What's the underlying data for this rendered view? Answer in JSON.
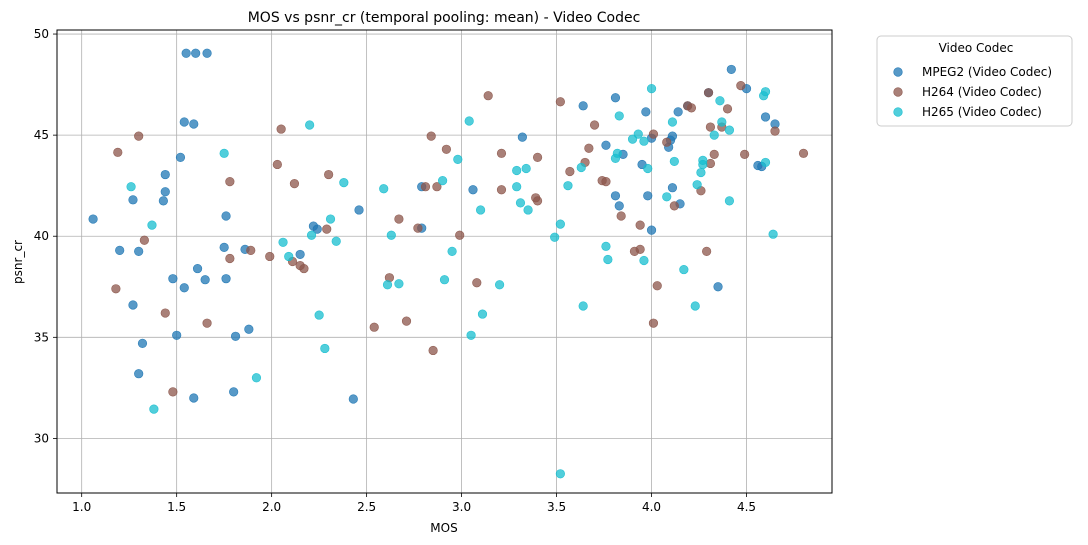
{
  "chart_data": {
    "type": "scatter",
    "title": "MOS vs psnr_cr (temporal pooling: mean) - Video Codec",
    "xlabel": "MOS",
    "ylabel": "psnr_cr",
    "xlim": [
      0.87,
      4.95
    ],
    "ylim": [
      27.3,
      50.2
    ],
    "xticks": [
      1.0,
      1.5,
      2.0,
      2.5,
      3.0,
      3.5,
      4.0,
      4.5
    ],
    "xtick_labels": [
      "1.0",
      "1.5",
      "2.0",
      "2.5",
      "3.0",
      "3.5",
      "4.0",
      "4.5"
    ],
    "yticks": [
      30,
      35,
      40,
      45,
      50
    ],
    "ytick_labels": [
      "30",
      "35",
      "40",
      "45",
      "50"
    ],
    "grid": true,
    "legend": {
      "title": "Video Codec",
      "placement": "outside-top-right"
    },
    "series": [
      {
        "name": "MPEG2 (Video Codec)",
        "color": "#1f77b4",
        "points": [
          [
            1.06,
            40.85
          ],
          [
            1.2,
            39.3
          ],
          [
            1.27,
            41.8
          ],
          [
            1.27,
            36.6
          ],
          [
            1.3,
            39.25
          ],
          [
            1.3,
            33.2
          ],
          [
            1.32,
            34.7
          ],
          [
            1.43,
            41.75
          ],
          [
            1.44,
            43.05
          ],
          [
            1.44,
            42.2
          ],
          [
            1.48,
            37.9
          ],
          [
            1.5,
            35.1
          ],
          [
            1.52,
            43.9
          ],
          [
            1.54,
            45.65
          ],
          [
            1.54,
            37.45
          ],
          [
            1.55,
            49.05
          ],
          [
            1.59,
            45.55
          ],
          [
            1.6,
            49.05
          ],
          [
            1.59,
            32.0
          ],
          [
            1.61,
            38.4
          ],
          [
            1.65,
            37.85
          ],
          [
            1.66,
            49.05
          ],
          [
            1.75,
            39.45
          ],
          [
            1.76,
            41.0
          ],
          [
            1.76,
            37.9
          ],
          [
            1.8,
            32.3
          ],
          [
            1.81,
            35.05
          ],
          [
            1.86,
            39.35
          ],
          [
            1.88,
            35.4
          ],
          [
            2.15,
            39.1
          ],
          [
            2.22,
            40.5
          ],
          [
            2.24,
            40.35
          ],
          [
            2.43,
            31.95
          ],
          [
            2.46,
            41.3
          ],
          [
            2.79,
            42.45
          ],
          [
            2.79,
            40.4
          ],
          [
            3.06,
            42.3
          ],
          [
            3.32,
            44.9
          ],
          [
            3.64,
            46.45
          ],
          [
            3.76,
            44.5
          ],
          [
            3.81,
            46.85
          ],
          [
            3.81,
            42.0
          ],
          [
            3.83,
            41.5
          ],
          [
            3.85,
            44.05
          ],
          [
            3.95,
            43.55
          ],
          [
            3.97,
            46.15
          ],
          [
            3.98,
            42.0
          ],
          [
            4.0,
            44.85
          ],
          [
            4.0,
            40.3
          ],
          [
            4.09,
            44.4
          ],
          [
            4.1,
            44.75
          ],
          [
            4.11,
            42.4
          ],
          [
            4.11,
            44.95
          ],
          [
            4.14,
            46.15
          ],
          [
            4.15,
            41.6
          ],
          [
            4.19,
            46.45
          ],
          [
            4.3,
            47.1
          ],
          [
            4.35,
            37.5
          ],
          [
            4.42,
            48.25
          ],
          [
            4.5,
            47.3
          ],
          [
            4.56,
            43.5
          ],
          [
            4.58,
            43.45
          ],
          [
            4.6,
            45.9
          ],
          [
            4.65,
            45.55
          ]
        ]
      },
      {
        "name": "H264 (Video Codec)",
        "color": "#8c564b",
        "points": [
          [
            1.18,
            37.4
          ],
          [
            1.19,
            44.15
          ],
          [
            1.3,
            44.95
          ],
          [
            1.33,
            39.8
          ],
          [
            1.44,
            36.2
          ],
          [
            1.48,
            32.3
          ],
          [
            1.66,
            35.7
          ],
          [
            1.78,
            38.9
          ],
          [
            1.78,
            42.7
          ],
          [
            1.89,
            39.3
          ],
          [
            1.99,
            39.0
          ],
          [
            2.03,
            43.55
          ],
          [
            2.05,
            45.3
          ],
          [
            2.11,
            38.75
          ],
          [
            2.12,
            42.6
          ],
          [
            2.15,
            38.55
          ],
          [
            2.17,
            38.4
          ],
          [
            2.29,
            40.35
          ],
          [
            2.3,
            43.05
          ],
          [
            2.54,
            35.5
          ],
          [
            2.62,
            37.95
          ],
          [
            2.67,
            40.85
          ],
          [
            2.71,
            35.8
          ],
          [
            2.77,
            40.4
          ],
          [
            2.81,
            42.45
          ],
          [
            2.84,
            44.95
          ],
          [
            2.85,
            34.35
          ],
          [
            2.87,
            42.45
          ],
          [
            2.92,
            44.3
          ],
          [
            2.99,
            40.05
          ],
          [
            3.08,
            37.7
          ],
          [
            3.14,
            46.95
          ],
          [
            3.21,
            44.1
          ],
          [
            3.21,
            42.3
          ],
          [
            3.39,
            41.9
          ],
          [
            3.4,
            43.9
          ],
          [
            3.4,
            41.75
          ],
          [
            3.52,
            46.65
          ],
          [
            3.57,
            43.2
          ],
          [
            3.65,
            43.65
          ],
          [
            3.67,
            44.35
          ],
          [
            3.7,
            45.5
          ],
          [
            3.74,
            42.75
          ],
          [
            3.76,
            42.7
          ],
          [
            3.84,
            41.0
          ],
          [
            3.91,
            39.25
          ],
          [
            3.94,
            40.55
          ],
          [
            3.94,
            39.35
          ],
          [
            4.01,
            45.05
          ],
          [
            4.01,
            35.7
          ],
          [
            4.03,
            37.55
          ],
          [
            4.08,
            44.65
          ],
          [
            4.12,
            41.5
          ],
          [
            4.19,
            46.45
          ],
          [
            4.21,
            46.35
          ],
          [
            4.26,
            42.25
          ],
          [
            4.29,
            39.25
          ],
          [
            4.3,
            47.1
          ],
          [
            4.31,
            45.4
          ],
          [
            4.31,
            43.6
          ],
          [
            4.33,
            44.05
          ],
          [
            4.37,
            45.4
          ],
          [
            4.4,
            46.3
          ],
          [
            4.47,
            47.45
          ],
          [
            4.49,
            44.05
          ],
          [
            4.65,
            45.2
          ],
          [
            4.8,
            44.1
          ]
        ]
      },
      {
        "name": "H265 (Video Codec)",
        "color": "#17becf",
        "points": [
          [
            1.26,
            42.45
          ],
          [
            1.37,
            40.55
          ],
          [
            1.38,
            31.45
          ],
          [
            1.75,
            44.1
          ],
          [
            1.92,
            33.0
          ],
          [
            2.06,
            39.7
          ],
          [
            2.09,
            39.0
          ],
          [
            2.2,
            45.5
          ],
          [
            2.21,
            40.05
          ],
          [
            2.25,
            36.1
          ],
          [
            2.28,
            34.45
          ],
          [
            2.31,
            40.85
          ],
          [
            2.34,
            39.75
          ],
          [
            2.38,
            42.65
          ],
          [
            2.59,
            42.35
          ],
          [
            2.61,
            37.6
          ],
          [
            2.63,
            40.05
          ],
          [
            2.67,
            37.65
          ],
          [
            2.9,
            42.75
          ],
          [
            2.91,
            37.85
          ],
          [
            2.95,
            39.25
          ],
          [
            2.98,
            43.8
          ],
          [
            3.04,
            45.7
          ],
          [
            3.05,
            35.1
          ],
          [
            3.1,
            41.3
          ],
          [
            3.11,
            36.15
          ],
          [
            3.2,
            37.6
          ],
          [
            3.29,
            43.25
          ],
          [
            3.29,
            42.45
          ],
          [
            3.31,
            41.65
          ],
          [
            3.34,
            43.35
          ],
          [
            3.35,
            41.3
          ],
          [
            3.49,
            39.95
          ],
          [
            3.52,
            40.6
          ],
          [
            3.52,
            28.25
          ],
          [
            3.56,
            42.5
          ],
          [
            3.63,
            43.4
          ],
          [
            3.64,
            36.55
          ],
          [
            3.76,
            39.5
          ],
          [
            3.77,
            38.85
          ],
          [
            3.81,
            43.85
          ],
          [
            3.82,
            44.1
          ],
          [
            3.83,
            45.95
          ],
          [
            3.9,
            44.8
          ],
          [
            3.93,
            45.05
          ],
          [
            3.96,
            38.8
          ],
          [
            3.96,
            44.7
          ],
          [
            3.98,
            43.35
          ],
          [
            4.0,
            47.3
          ],
          [
            4.08,
            41.95
          ],
          [
            4.11,
            45.65
          ],
          [
            4.12,
            43.7
          ],
          [
            4.17,
            38.35
          ],
          [
            4.23,
            36.55
          ],
          [
            4.24,
            42.55
          ],
          [
            4.26,
            43.15
          ],
          [
            4.27,
            43.75
          ],
          [
            4.27,
            43.55
          ],
          [
            4.33,
            45.0
          ],
          [
            4.36,
            46.7
          ],
          [
            4.37,
            45.65
          ],
          [
            4.41,
            45.25
          ],
          [
            4.41,
            41.75
          ],
          [
            4.59,
            46.95
          ],
          [
            4.6,
            47.15
          ],
          [
            4.6,
            43.65
          ],
          [
            4.64,
            40.1
          ]
        ]
      }
    ]
  }
}
